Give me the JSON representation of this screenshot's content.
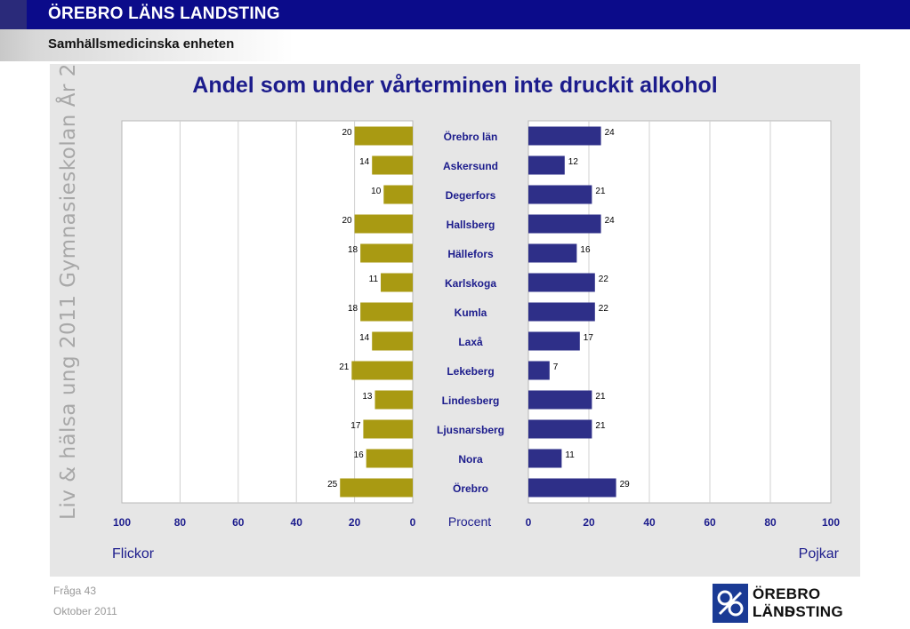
{
  "header": {
    "org": "ÖREBRO LÄNS LANDSTING",
    "unit": "Samhällsmedicinska enheten"
  },
  "side_label": "Liv & hälsa ung 2011 Gymnasieskolan År 2",
  "footer": {
    "question": "Fråga 43",
    "date": "Oktober 2011"
  },
  "logo": {
    "line1": "ÖREBRO LÄNS",
    "line2": "LANDSTING"
  },
  "colors": {
    "girls": "#a99a12",
    "boys": "#2e2f88",
    "title": "#1c1c8c",
    "label": "#1c1c8c"
  },
  "chart_data": {
    "type": "bar",
    "title": "Andel som under vårterminen inte druckit alkohol",
    "categories": [
      "Örebro län",
      "Askersund",
      "Degerfors",
      "Hallsberg",
      "Hällefors",
      "Karlskoga",
      "Kumla",
      "Laxå",
      "Lekeberg",
      "Lindesberg",
      "Ljusnarsberg",
      "Nora",
      "Örebro"
    ],
    "series": [
      {
        "name": "Flickor",
        "values": [
          20,
          14,
          10,
          20,
          18,
          11,
          18,
          14,
          21,
          13,
          17,
          16,
          25
        ]
      },
      {
        "name": "Pojkar",
        "values": [
          24,
          12,
          21,
          24,
          16,
          22,
          22,
          17,
          7,
          21,
          21,
          11,
          29
        ]
      }
    ],
    "xlabel": "Procent",
    "xlim": [
      0,
      100
    ],
    "ticks_left": [
      "100",
      "80",
      "60",
      "40",
      "20",
      "0"
    ],
    "ticks_right": [
      "0",
      "20",
      "40",
      "60",
      "80",
      "100"
    ],
    "grid": true,
    "legend": [
      "Flickor",
      "Pojkar"
    ]
  }
}
